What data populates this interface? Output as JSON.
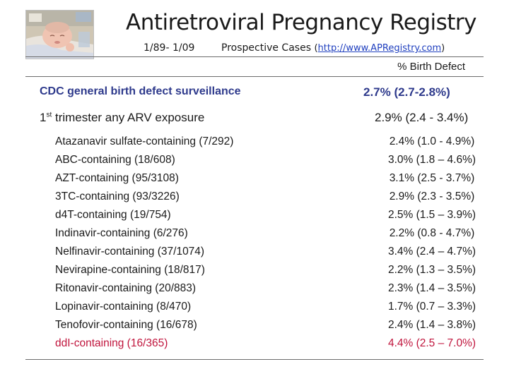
{
  "header": {
    "title": "Antiretroviral Pregnancy Registry",
    "dates": "1/89- 1/09",
    "prospective": "Prospective Cases",
    "url_open": "(",
    "url": "http://www.APRegistry.com",
    "url_close": ")"
  },
  "column_header": "% Birth Defect",
  "cdc": {
    "label": "CDC general birth defect surveillance",
    "value": "2.7% (2.7-2.8%)"
  },
  "first_trimester": {
    "label_pre": "1",
    "label_sup": "st",
    "label_post": " trimester any ARV exposure",
    "value": "2.9% (2.4 - 3.4%)"
  },
  "drugs": [
    {
      "label": "Atazanavir sulfate-containing (7/292)",
      "value": "2.4% (1.0 - 4.9%)"
    },
    {
      "label": "ABC-containing (18/608)",
      "value": "3.0% (1.8 – 4.6%)"
    },
    {
      "label": "AZT-containing (95/3108)",
      "value": "3.1% (2.5 - 3.7%)"
    },
    {
      "label": "3TC-containing (93/3226)",
      "value": "2.9% (2.3 - 3.5%)"
    },
    {
      "label": "d4T-containing (19/754)",
      "value": "2.5% (1.5 – 3.9%)"
    },
    {
      "label": "Indinavir-containing (6/276)",
      "value": "2.2% (0.8 - 4.7%)"
    },
    {
      "label": "Nelfinavir-containing (37/1074)",
      "value": "3.4% (2.4 – 4.7%)"
    },
    {
      "label": "Nevirapine-containing (18/817)",
      "value": "2.2% (1.3 – 3.5%)"
    },
    {
      "label": "Ritonavir-containing (20/883)",
      "value": "2.3% (1.4 – 3.5%)"
    },
    {
      "label": "Lopinavir-containing (8/470)",
      "value": "1.7% (0.7 – 3.3%)"
    },
    {
      "label": "Tenofovir-containing (16/678)",
      "value": "2.4% (1.4 – 3.8%)"
    },
    {
      "label": "ddI-containing (16/365)",
      "value": "4.4% (2.5 – 7.0%)"
    }
  ],
  "colors": {
    "heading_blue": "#2e3a8c",
    "highlight_red": "#c0143c",
    "text": "#1a1a1a"
  }
}
